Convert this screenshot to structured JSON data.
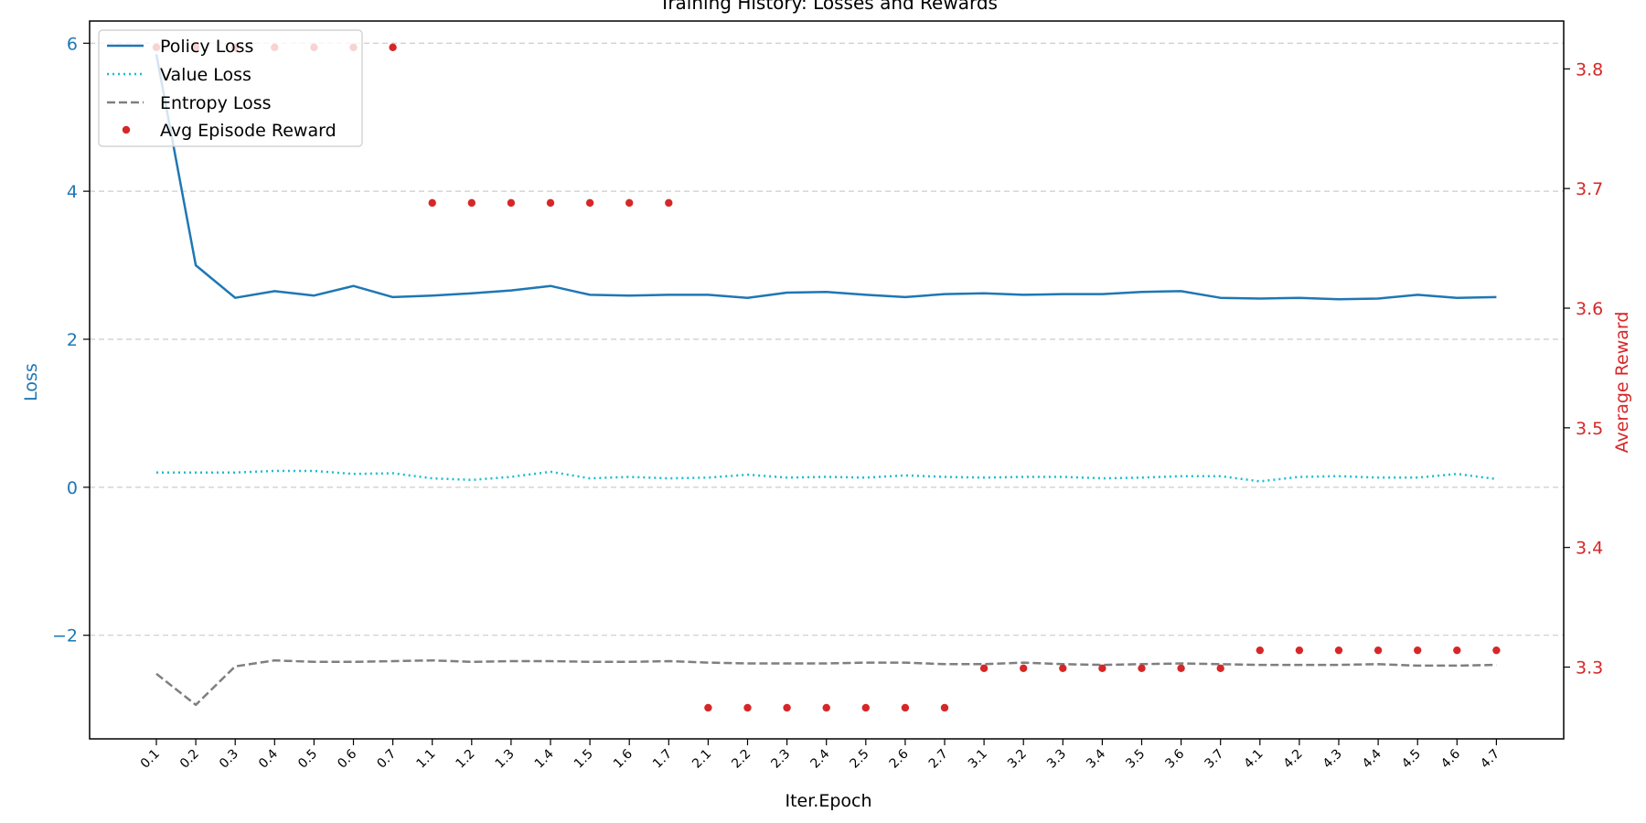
{
  "chart_data": {
    "type": "line",
    "title": "Training History: Losses and Rewards",
    "xlabel": "Iter.Epoch",
    "ylabel_left": "Loss",
    "ylabel_right": "Average Reward",
    "categories": [
      "0.1",
      "0.2",
      "0.3",
      "0.4",
      "0.5",
      "0.6",
      "0.7",
      "1.1",
      "1.2",
      "1.3",
      "1.4",
      "1.5",
      "1.6",
      "1.7",
      "2.1",
      "2.2",
      "2.3",
      "2.4",
      "2.5",
      "2.6",
      "2.7",
      "3.1",
      "3.2",
      "3.3",
      "3.4",
      "3.5",
      "3.6",
      "3.7",
      "4.1",
      "4.2",
      "4.3",
      "4.4",
      "4.5",
      "4.6",
      "4.7"
    ],
    "ylim_left": [
      -3.4,
      6.3
    ],
    "yticks_left": [
      6,
      4,
      2,
      0,
      -2
    ],
    "yticks_left_labels": [
      "6",
      "4",
      "2",
      "0",
      "−2"
    ],
    "ylim_right": [
      3.24,
      3.84
    ],
    "yticks_right": [
      3.8,
      3.7,
      3.6,
      3.5,
      3.4,
      3.3
    ],
    "yticks_right_labels": [
      "3.8",
      "3.7",
      "3.6",
      "3.5",
      "3.4",
      "3.3"
    ],
    "grid": "horizontal-dashed",
    "legend_position": "top-left",
    "colors": {
      "left_axis": "#1f77b4",
      "right_axis": "#d62728",
      "grid": "#cccccc"
    },
    "series": [
      {
        "name": "Policy Loss",
        "axis": "left",
        "style": "solid",
        "color": "#1f77b4",
        "values": [
          5.85,
          3.0,
          2.56,
          2.65,
          2.59,
          2.72,
          2.57,
          2.59,
          2.62,
          2.66,
          2.72,
          2.6,
          2.59,
          2.6,
          2.6,
          2.56,
          2.63,
          2.64,
          2.6,
          2.57,
          2.61,
          2.62,
          2.6,
          2.61,
          2.61,
          2.64,
          2.65,
          2.56,
          2.55,
          2.56,
          2.54,
          2.55,
          2.6,
          2.56,
          2.57
        ]
      },
      {
        "name": "Value Loss",
        "axis": "left",
        "style": "dotted",
        "color": "#17becf",
        "values": [
          0.2,
          0.2,
          0.2,
          0.22,
          0.22,
          0.18,
          0.19,
          0.12,
          0.1,
          0.14,
          0.21,
          0.12,
          0.14,
          0.12,
          0.13,
          0.17,
          0.13,
          0.14,
          0.13,
          0.16,
          0.14,
          0.13,
          0.14,
          0.14,
          0.12,
          0.13,
          0.15,
          0.15,
          0.08,
          0.14,
          0.15,
          0.13,
          0.13,
          0.18,
          0.11
        ]
      },
      {
        "name": "Entropy Loss",
        "axis": "left",
        "style": "dashed",
        "color": "#7f7f7f",
        "values": [
          -2.52,
          -2.94,
          -2.42,
          -2.34,
          -2.36,
          -2.36,
          -2.35,
          -2.34,
          -2.36,
          -2.35,
          -2.35,
          -2.36,
          -2.36,
          -2.35,
          -2.37,
          -2.38,
          -2.38,
          -2.38,
          -2.37,
          -2.37,
          -2.39,
          -2.39,
          -2.37,
          -2.39,
          -2.4,
          -2.39,
          -2.38,
          -2.39,
          -2.4,
          -2.4,
          -2.4,
          -2.39,
          -2.41,
          -2.41,
          -2.4
        ]
      },
      {
        "name": "Avg Episode Reward",
        "axis": "right",
        "style": "points",
        "color": "#d62728",
        "values": [
          3.818,
          3.818,
          3.818,
          3.818,
          3.818,
          3.818,
          3.818,
          3.688,
          3.688,
          3.688,
          3.688,
          3.688,
          3.688,
          3.688,
          3.266,
          3.266,
          3.266,
          3.266,
          3.266,
          3.266,
          3.266,
          3.299,
          3.299,
          3.299,
          3.299,
          3.299,
          3.299,
          3.299,
          3.314,
          3.314,
          3.314,
          3.314,
          3.314,
          3.314,
          3.314
        ]
      }
    ]
  }
}
